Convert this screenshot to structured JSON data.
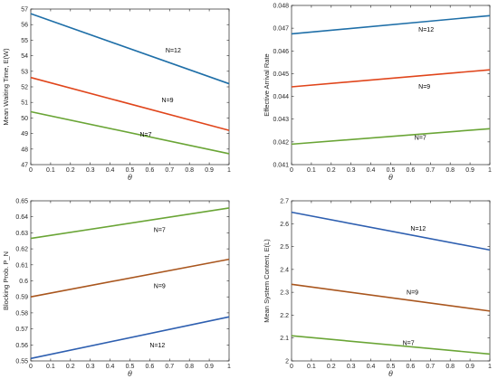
{
  "chart_data": [
    {
      "type": "line",
      "x": [
        0,
        1
      ],
      "xlabel": "θ",
      "ylabel": "Mean Waiting Time, E(W)",
      "xlim": [
        0,
        1
      ],
      "ylim": [
        47,
        57
      ],
      "xticks": [
        "0",
        "0.1",
        "0.2",
        "0.3",
        "0.4",
        "0.5",
        "0.6",
        "0.7",
        "0.8",
        "0.9",
        "1"
      ],
      "yticks": [
        "47",
        "48",
        "49",
        "50",
        "51",
        "52",
        "53",
        "54",
        "55",
        "56",
        "57"
      ],
      "series": [
        {
          "values": [
            56.7,
            52.2
          ],
          "color": "#1f6fa8"
        },
        {
          "values": [
            52.6,
            49.2
          ],
          "color": "#e0451b"
        },
        {
          "values": [
            50.4,
            47.7
          ],
          "color": "#6aa536"
        }
      ],
      "annotations": [
        {
          "text": "N=12",
          "x": 0.68,
          "y": 54.2
        },
        {
          "text": "N=9",
          "x": 0.66,
          "y": 51.0
        },
        {
          "text": "N=7",
          "x": 0.55,
          "y": 48.8
        }
      ]
    },
    {
      "type": "line",
      "x": [
        0,
        1
      ],
      "xlabel": "θ",
      "ylabel": "Effective Arrival Rate",
      "xlim": [
        0,
        1
      ],
      "ylim": [
        0.041,
        0.048
      ],
      "xticks": [
        "0",
        "0.1",
        "0.2",
        "0.3",
        "0.4",
        "0.5",
        "0.6",
        "0.7",
        "0.8",
        "0.9",
        "1"
      ],
      "yticks": [
        "0.041",
        "0.042",
        "0.043",
        "0.044",
        "0.045",
        "0.046",
        "0.047",
        "0.048"
      ],
      "series": [
        {
          "values": [
            0.04675,
            0.04755
          ],
          "color": "#1f6fa8"
        },
        {
          "values": [
            0.04442,
            0.04517
          ],
          "color": "#e0451b"
        },
        {
          "values": [
            0.0419,
            0.04258
          ],
          "color": "#6aa536"
        }
      ],
      "annotations": [
        {
          "text": "N=12",
          "x": 0.64,
          "y": 0.04685
        },
        {
          "text": "N=9",
          "x": 0.64,
          "y": 0.04435
        },
        {
          "text": "N=7",
          "x": 0.62,
          "y": 0.0421
        }
      ]
    },
    {
      "type": "line",
      "x": [
        0,
        1
      ],
      "xlabel": "θ",
      "ylabel": "Blocking Prob. P_N",
      "xlim": [
        0,
        1
      ],
      "ylim": [
        0.55,
        0.65
      ],
      "xticks": [
        "0",
        "0.1",
        "0.2",
        "0.3",
        "0.4",
        "0.5",
        "0.6",
        "0.7",
        "0.8",
        "0.9",
        "1"
      ],
      "yticks": [
        "0.55",
        "0.56",
        "0.57",
        "0.58",
        "0.59",
        "0.6",
        "0.61",
        "0.62",
        "0.63",
        "0.64",
        "0.65"
      ],
      "series": [
        {
          "values": [
            0.6265,
            0.6455
          ],
          "color": "#6aa536"
        },
        {
          "values": [
            0.59,
            0.6135
          ],
          "color": "#a9561e"
        },
        {
          "values": [
            0.5515,
            0.5775
          ],
          "color": "#2e5fb0"
        }
      ],
      "annotations": [
        {
          "text": "N=7",
          "x": 0.62,
          "y": 0.6305
        },
        {
          "text": "N=9",
          "x": 0.62,
          "y": 0.5955
        },
        {
          "text": "N=12",
          "x": 0.6,
          "y": 0.5585
        }
      ]
    },
    {
      "type": "line",
      "x": [
        0,
        1
      ],
      "xlabel": "θ",
      "ylabel": "Mean System Content, E(L)",
      "xlim": [
        0,
        1
      ],
      "ylim": [
        2,
        2.7
      ],
      "xticks": [
        "0",
        "0.1",
        "0.2",
        "0.3",
        "0.4",
        "0.5",
        "0.6",
        "0.7",
        "0.8",
        "0.9",
        "1"
      ],
      "yticks": [
        "2",
        "2.1",
        "2.2",
        "2.3",
        "2.4",
        "2.5",
        "2.6",
        "2.7"
      ],
      "series": [
        {
          "values": [
            2.65,
            2.485
          ],
          "color": "#2e5fb0"
        },
        {
          "values": [
            2.335,
            2.218
          ],
          "color": "#a9561e"
        },
        {
          "values": [
            2.11,
            2.03
          ],
          "color": "#6aa536"
        }
      ],
      "annotations": [
        {
          "text": "N=12",
          "x": 0.6,
          "y": 2.57
        },
        {
          "text": "N=9",
          "x": 0.58,
          "y": 2.29
        },
        {
          "text": "N=7",
          "x": 0.56,
          "y": 2.07
        }
      ]
    }
  ]
}
